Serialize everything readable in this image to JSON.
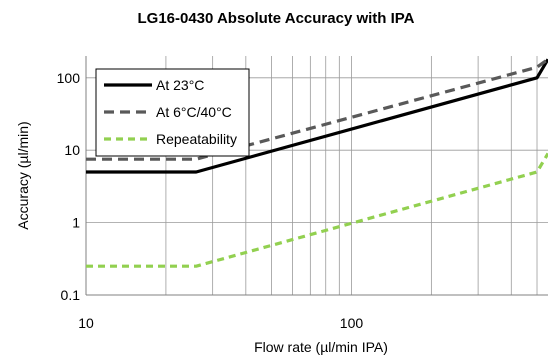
{
  "chart_data": {
    "type": "line",
    "title": "LG16-0430  Absolute Accuracy with IPA",
    "xlabel": "Flow rate (µl/min IPA)",
    "ylabel": "Accuracy (µl/min)",
    "x_scale": "log",
    "y_scale": "log",
    "xlim": [
      10,
      550
    ],
    "ylim": [
      0.1,
      200
    ],
    "x_ticks": [
      {
        "value": 10,
        "label": "10"
      },
      {
        "value": 100,
        "label": "100"
      }
    ],
    "y_ticks": [
      {
        "value": 0.1,
        "label": "0.1"
      },
      {
        "value": 1,
        "label": "1"
      },
      {
        "value": 10,
        "label": "10"
      },
      {
        "value": 100,
        "label": "100"
      }
    ],
    "grid": "vertical minor and major lines on x; horizontal lines at y decades",
    "legend": "top-left",
    "series": [
      {
        "name": "At 23°C",
        "color": "#000000",
        "style": "solid",
        "x": [
          10,
          26,
          500,
          550
        ],
        "y": [
          5,
          5,
          100,
          180
        ]
      },
      {
        "name": "At 6°C/40°C",
        "color": "#595959",
        "style": "dashed",
        "x": [
          10,
          26,
          500,
          550
        ],
        "y": [
          7.5,
          7.5,
          140,
          180
        ]
      },
      {
        "name": "Repeatability",
        "color": "#92d050",
        "style": "dashed",
        "x": [
          10,
          26,
          500,
          550
        ],
        "y": [
          0.25,
          0.25,
          5,
          9
        ]
      }
    ]
  }
}
